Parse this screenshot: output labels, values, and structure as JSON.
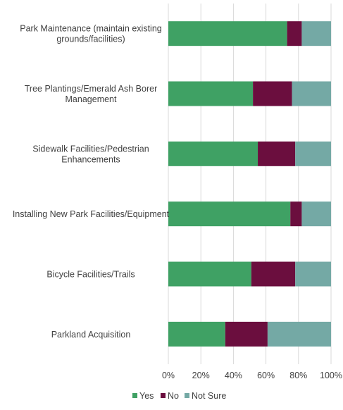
{
  "chart_data": {
    "type": "bar",
    "orientation": "horizontal",
    "stacked": "percent",
    "categories": [
      [
        "Park Maintenance (maintain existing",
        "grounds/facilities)"
      ],
      [
        "Tree Plantings/Emerald Ash Borer",
        "Management"
      ],
      [
        "Sidewalk Facilities/Pedestrian",
        "Enhancements"
      ],
      [
        "Installing New Park Facilities/Equipment"
      ],
      [
        "Bicycle Facilities/Trails"
      ],
      [
        "Parkland Acquisition"
      ]
    ],
    "series": [
      {
        "name": "Yes",
        "color": "#3fa164",
        "values": [
          73,
          52,
          55,
          75,
          51,
          35
        ]
      },
      {
        "name": "No",
        "color": "#6b0e3e",
        "values": [
          9,
          24,
          23,
          7,
          27,
          26
        ]
      },
      {
        "name": "Not Sure",
        "color": "#74a9a5",
        "values": [
          18,
          24,
          22,
          18,
          22,
          39
        ]
      }
    ],
    "xlim": [
      0,
      100
    ],
    "xticks": [
      0,
      20,
      40,
      60,
      80,
      100
    ],
    "tick_suffix": "%",
    "grid": true,
    "legend": "bottom"
  }
}
